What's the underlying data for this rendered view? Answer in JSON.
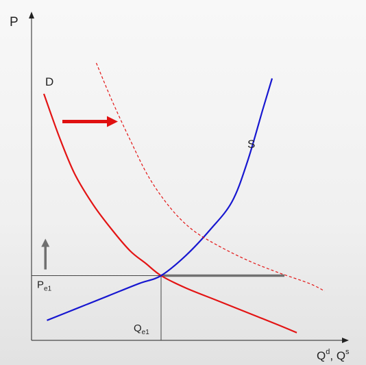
{
  "chart_data": {
    "type": "line",
    "title": "",
    "ylabel": "P",
    "xlabel": {
      "base1": "Q",
      "sup1": "d",
      "sep": ", ",
      "base2": "Q",
      "sup2": "s"
    },
    "grid": false,
    "legend": "none",
    "xlim": [
      0,
      10
    ],
    "ylim": [
      0,
      10
    ],
    "series": [
      {
        "name": "D",
        "style": "solid",
        "color": "#e31414",
        "x": [
          0.4,
          0.9,
          1.4,
          2.0,
          2.6,
          3.2,
          3.7,
          4.2,
          5.0,
          6.0,
          7.0,
          8.0,
          8.6
        ],
        "y": [
          8.0,
          6.6,
          5.4,
          4.4,
          3.6,
          2.9,
          2.5,
          2.1,
          1.7,
          1.3,
          0.9,
          0.5,
          0.25
        ]
      },
      {
        "name": "S",
        "style": "solid",
        "color": "#1717d0",
        "x": [
          0.5,
          1.5,
          2.5,
          3.5,
          4.2,
          5.0,
          5.8,
          6.5,
          7.0,
          7.5,
          7.8
        ],
        "y": [
          0.65,
          1.05,
          1.45,
          1.85,
          2.1,
          2.75,
          3.6,
          4.5,
          5.8,
          7.5,
          8.5
        ]
      },
      {
        "name": "",
        "style": "dashed",
        "color": "#e31414",
        "x": [
          2.1,
          2.6,
          3.2,
          3.8,
          4.5,
          5.2,
          6.0,
          7.0,
          8.0,
          9.0,
          9.5
        ],
        "y": [
          9.0,
          7.8,
          6.5,
          5.3,
          4.3,
          3.6,
          3.1,
          2.6,
          2.2,
          1.85,
          1.6
        ]
      }
    ],
    "series_labels": {
      "demand": "D",
      "supply": "S"
    },
    "equilibrium": {
      "x": 4.2,
      "y": 2.1,
      "price_label": {
        "base": "P",
        "sub": "e1"
      },
      "quantity_label": {
        "base": "Q",
        "sub": "e1"
      }
    },
    "excess_demand_line": {
      "x_from": 4.2,
      "x_to": 8.2,
      "y": 2.1,
      "color": "#707070"
    },
    "shift_arrow": {
      "x_from": 1.0,
      "x_to": 2.8,
      "y": 7.1,
      "color": "#e01010"
    },
    "price_arrow": {
      "x": 0.45,
      "y_from": 2.3,
      "y_to": 3.3,
      "color": "#707070"
    }
  }
}
